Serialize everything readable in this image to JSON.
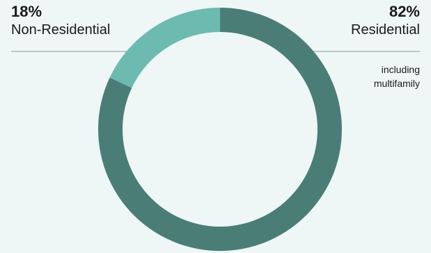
{
  "chart_data": {
    "type": "pie",
    "variant": "donut",
    "categories": [
      "Residential",
      "Non-Residential"
    ],
    "values": [
      82,
      18
    ],
    "value_labels": [
      "82%",
      "18%"
    ],
    "annotations": [
      {
        "category": "Residential",
        "text": "including multifamily"
      }
    ],
    "colors": {
      "Residential": "#4b7d77",
      "Non-Residential": "#6dbbb0"
    },
    "legend": "none",
    "title": ""
  },
  "colors": {
    "background": "#eef6f6",
    "leader_line": "#8a9896"
  }
}
